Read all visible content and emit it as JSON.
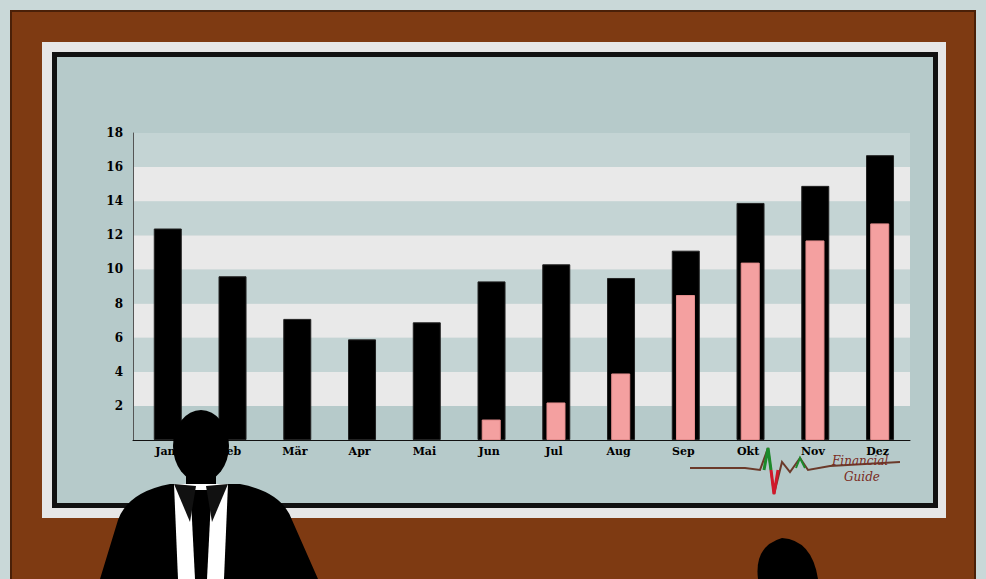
{
  "chart_data": {
    "type": "bar",
    "categories": [
      "Jan",
      "Feb",
      "Mär",
      "Apr",
      "Mai",
      "Jun",
      "Jul",
      "Aug",
      "Sep",
      "Okt",
      "Nov",
      "Dez"
    ],
    "series": [
      {
        "color": "#000000",
        "values": [
          12.4,
          9.6,
          7.1,
          5.9,
          6.9,
          9.3,
          10.3,
          9.5,
          11.1,
          13.9,
          14.9,
          16.7
        ]
      },
      {
        "color": "#f4a0a0",
        "values": [
          null,
          null,
          null,
          null,
          null,
          1.2,
          2.2,
          3.9,
          8.5,
          10.4,
          11.7,
          12.7
        ]
      }
    ],
    "ylim": [
      0,
      18
    ],
    "yticks": [
      2,
      4,
      6,
      8,
      10,
      12,
      14,
      16,
      18
    ],
    "grid": true,
    "annotations": [
      "Financial",
      "Guide"
    ]
  }
}
